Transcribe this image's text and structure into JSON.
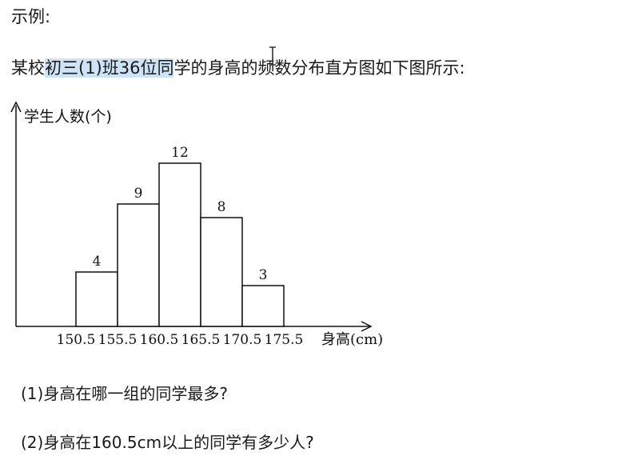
{
  "header": {
    "example_label": "示例:",
    "intro_before": "某校",
    "intro_highlight": "初三(1)班36位同",
    "intro_after": "学的身高的频数分布直方图如下图所示:"
  },
  "questions": {
    "q1": "(1)身高在哪一组的同学最多?",
    "q2": "(2)身高在160.5cm以上的同学有多少人?"
  },
  "chart_data": {
    "type": "bar",
    "title": "",
    "xlabel": "身高(cm)",
    "ylabel": "学生人数(个)",
    "bin_edges": [
      150.5,
      155.5,
      160.5,
      165.5,
      170.5,
      175.5
    ],
    "tick_labels": [
      "150.5",
      "155.5",
      "160.5",
      "165.5",
      "170.5",
      "175.5"
    ],
    "values": [
      4,
      9,
      12,
      8,
      3
    ],
    "data_labels": [
      "4",
      "9",
      "12",
      "8",
      "3"
    ],
    "ylim": [
      0,
      12
    ],
    "grid": false
  }
}
